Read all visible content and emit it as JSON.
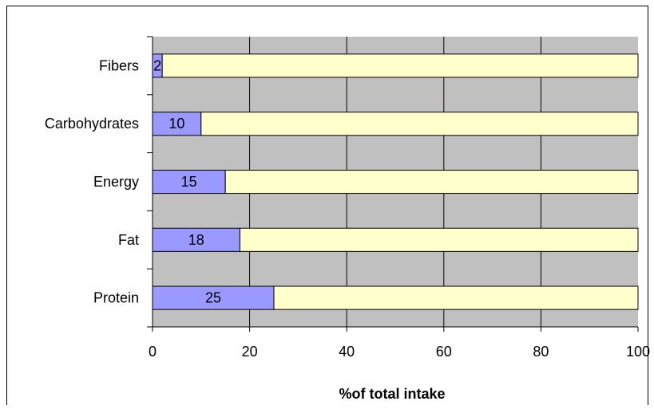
{
  "chart_data": {
    "type": "bar",
    "orientation": "horizontal",
    "stacked": true,
    "categories": [
      "Fibers",
      "Carbohydrates",
      "Energy",
      "Fat",
      "Protein"
    ],
    "series": [
      {
        "values": [
          2,
          10,
          15,
          18,
          25
        ],
        "color": "#9999ff"
      },
      {
        "values": [
          98,
          90,
          85,
          82,
          75
        ],
        "color": "#ffffcc"
      }
    ],
    "data_labels": [
      "2",
      "10",
      "15",
      "18",
      "25"
    ],
    "xlim": [
      0,
      100
    ],
    "xticks": [
      "0",
      "20",
      "40",
      "60",
      "80",
      "100"
    ],
    "xlabel": "%of total intake",
    "ylabel": "",
    "grid": "vertical",
    "legend": "none",
    "plot_background": "#c0c0c0"
  }
}
